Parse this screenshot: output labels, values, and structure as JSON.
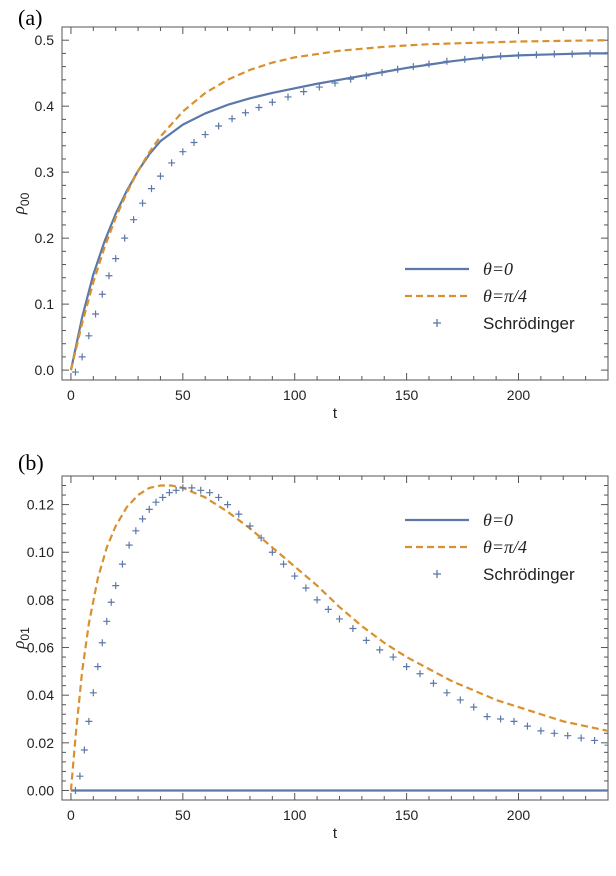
{
  "chart_data": [
    {
      "type": "line",
      "panel_label": "(a)",
      "xlabel": "t",
      "ylabel": "ρ",
      "ylabel_sub": "00",
      "xlim": [
        -4,
        240
      ],
      "ylim": [
        -0.015,
        0.52
      ],
      "xticks": [
        0,
        50,
        100,
        150,
        200
      ],
      "xtick_labels": [
        "0",
        "50",
        "100",
        "150",
        "200"
      ],
      "yticks": [
        0.0,
        0.1,
        0.2,
        0.3,
        0.4,
        0.5
      ],
      "ytick_labels": [
        "0.0",
        "0.1",
        "0.2",
        "0.3",
        "0.4",
        "0.5"
      ],
      "legend_position": "bottom-right",
      "series": [
        {
          "name": "θ=0",
          "style": "solid",
          "color": "#5b78a8",
          "x": [
            0,
            5,
            10,
            15,
            20,
            25,
            30,
            35,
            40,
            50,
            60,
            70,
            80,
            90,
            100,
            110,
            120,
            130,
            140,
            150,
            160,
            170,
            180,
            190,
            200,
            210,
            220,
            230,
            240
          ],
          "y": [
            0.0,
            0.08,
            0.145,
            0.195,
            0.237,
            0.272,
            0.302,
            0.327,
            0.347,
            0.372,
            0.389,
            0.402,
            0.412,
            0.42,
            0.427,
            0.434,
            0.44,
            0.446,
            0.452,
            0.458,
            0.463,
            0.468,
            0.472,
            0.475,
            0.477,
            0.478,
            0.479,
            0.48,
            0.48
          ]
        },
        {
          "name": "θ=π/4",
          "style": "dashed",
          "color": "#d9902e",
          "x": [
            0,
            5,
            10,
            15,
            20,
            25,
            30,
            35,
            40,
            50,
            60,
            70,
            80,
            90,
            100,
            120,
            140,
            160,
            180,
            200,
            220,
            240
          ],
          "y": [
            0.0,
            0.071,
            0.133,
            0.186,
            0.231,
            0.269,
            0.302,
            0.33,
            0.354,
            0.392,
            0.42,
            0.44,
            0.455,
            0.466,
            0.474,
            0.484,
            0.49,
            0.494,
            0.496,
            0.498,
            0.499,
            0.5
          ]
        },
        {
          "name": "Schrödinger",
          "style": "markers",
          "marker": "+",
          "color": "#5b78a8",
          "x": [
            2,
            5,
            8,
            11,
            14,
            17,
            20,
            24,
            28,
            32,
            36,
            40,
            45,
            50,
            55,
            60,
            66,
            72,
            78,
            84,
            90,
            97,
            104,
            111,
            118,
            125,
            132,
            139,
            146,
            153,
            160,
            168,
            176,
            184,
            192,
            200,
            208,
            216,
            224,
            232,
            240
          ],
          "y": [
            -0.003,
            0.02,
            0.052,
            0.085,
            0.115,
            0.143,
            0.169,
            0.2,
            0.228,
            0.253,
            0.275,
            0.294,
            0.314,
            0.331,
            0.345,
            0.357,
            0.37,
            0.381,
            0.39,
            0.398,
            0.406,
            0.414,
            0.422,
            0.429,
            0.435,
            0.441,
            0.446,
            0.451,
            0.456,
            0.46,
            0.464,
            0.468,
            0.471,
            0.474,
            0.476,
            0.477,
            0.478,
            0.479,
            0.479,
            0.48,
            0.481
          ]
        }
      ]
    },
    {
      "type": "line",
      "panel_label": "(b)",
      "xlabel": "t",
      "ylabel": "ρ",
      "ylabel_sub": "01",
      "xlim": [
        -4,
        240
      ],
      "ylim": [
        -0.004,
        0.132
      ],
      "xticks": [
        0,
        50,
        100,
        150,
        200
      ],
      "xtick_labels": [
        "0",
        "50",
        "100",
        "150",
        "200"
      ],
      "yticks": [
        0.0,
        0.02,
        0.04,
        0.06,
        0.08,
        0.1,
        0.12
      ],
      "ytick_labels": [
        "0.00",
        "0.02",
        "0.04",
        "0.06",
        "0.08",
        "0.10",
        "0.12"
      ],
      "legend_position": "top-right",
      "series": [
        {
          "name": "θ=0",
          "style": "solid",
          "color": "#5b78a8",
          "x": [
            0,
            240
          ],
          "y": [
            0.0,
            0.0
          ]
        },
        {
          "name": "θ=π/4",
          "style": "dashed",
          "color": "#d9902e",
          "x": [
            0,
            2,
            5,
            8,
            12,
            16,
            20,
            25,
            30,
            35,
            40,
            45,
            50,
            60,
            70,
            80,
            90,
            100,
            110,
            120,
            130,
            140,
            150,
            160,
            170,
            180,
            190,
            200,
            210,
            220,
            230,
            240
          ],
          "y": [
            0.0,
            0.022,
            0.05,
            0.07,
            0.089,
            0.102,
            0.111,
            0.119,
            0.124,
            0.127,
            0.128,
            0.128,
            0.127,
            0.123,
            0.117,
            0.11,
            0.102,
            0.094,
            0.086,
            0.077,
            0.069,
            0.062,
            0.056,
            0.051,
            0.046,
            0.042,
            0.038,
            0.035,
            0.032,
            0.029,
            0.027,
            0.025
          ]
        },
        {
          "name": "Schrödinger",
          "style": "markers",
          "marker": "+",
          "color": "#5b78a8",
          "x": [
            2,
            4,
            6,
            8,
            10,
            12,
            14,
            16,
            18,
            20,
            23,
            26,
            29,
            32,
            35,
            38,
            41,
            44,
            47,
            50,
            54,
            58,
            62,
            66,
            70,
            75,
            80,
            85,
            90,
            95,
            100,
            105,
            110,
            115,
            120,
            126,
            132,
            138,
            144,
            150,
            156,
            162,
            168,
            174,
            180,
            186,
            192,
            198,
            204,
            210,
            216,
            222,
            228,
            234,
            240
          ],
          "y": [
            0.0,
            0.006,
            0.017,
            0.029,
            0.041,
            0.052,
            0.062,
            0.071,
            0.079,
            0.086,
            0.095,
            0.103,
            0.109,
            0.114,
            0.118,
            0.121,
            0.123,
            0.125,
            0.126,
            0.127,
            0.127,
            0.126,
            0.125,
            0.123,
            0.12,
            0.116,
            0.111,
            0.106,
            0.1,
            0.095,
            0.09,
            0.085,
            0.08,
            0.076,
            0.072,
            0.068,
            0.063,
            0.059,
            0.056,
            0.052,
            0.049,
            0.045,
            0.041,
            0.038,
            0.035,
            0.031,
            0.03,
            0.029,
            0.027,
            0.025,
            0.024,
            0.023,
            0.022,
            0.021,
            0.019
          ]
        }
      ]
    }
  ]
}
